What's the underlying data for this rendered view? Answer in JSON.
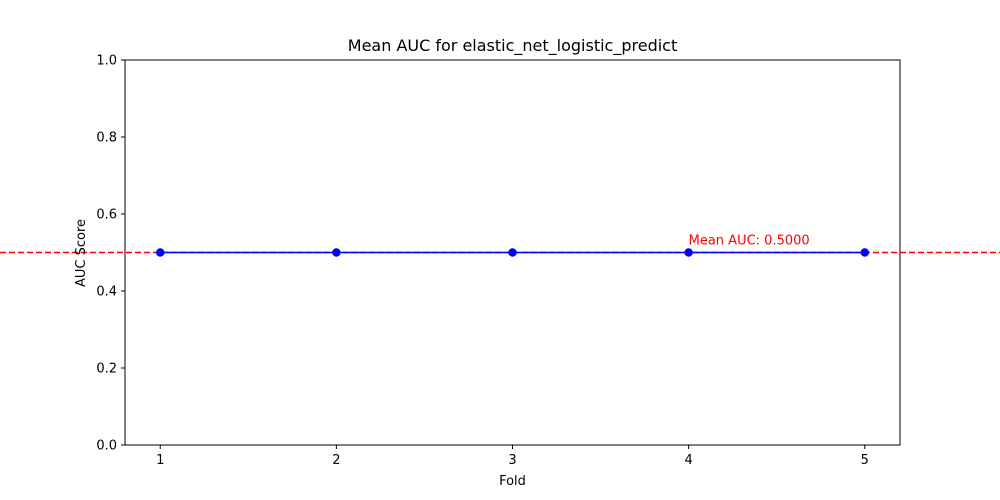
{
  "chart_data": {
    "type": "line",
    "title": "Mean AUC for elastic_net_logistic_predict",
    "xlabel": "Fold",
    "ylabel": "AUC Score",
    "x": [
      1,
      2,
      3,
      4,
      5
    ],
    "xticks": [
      "1",
      "2",
      "3",
      "4",
      "5"
    ],
    "xlim": [
      0.8,
      5.2
    ],
    "ylim": [
      0.0,
      1.0
    ],
    "yticks": [
      "0.0",
      "0.2",
      "0.4",
      "0.6",
      "0.8",
      "1.0"
    ],
    "grid": false,
    "series": [
      {
        "values": [
          0.5,
          0.5,
          0.5,
          0.5,
          0.5
        ],
        "color": "#0000ff",
        "marker": "circle"
      }
    ],
    "reference_line": {
      "y": 0.5,
      "style": "dashed",
      "color": "#ff0000"
    },
    "annotation": {
      "text": "Mean AUC: 0.5000",
      "x": 4,
      "y": 0.5,
      "color": "#ff0000"
    }
  }
}
